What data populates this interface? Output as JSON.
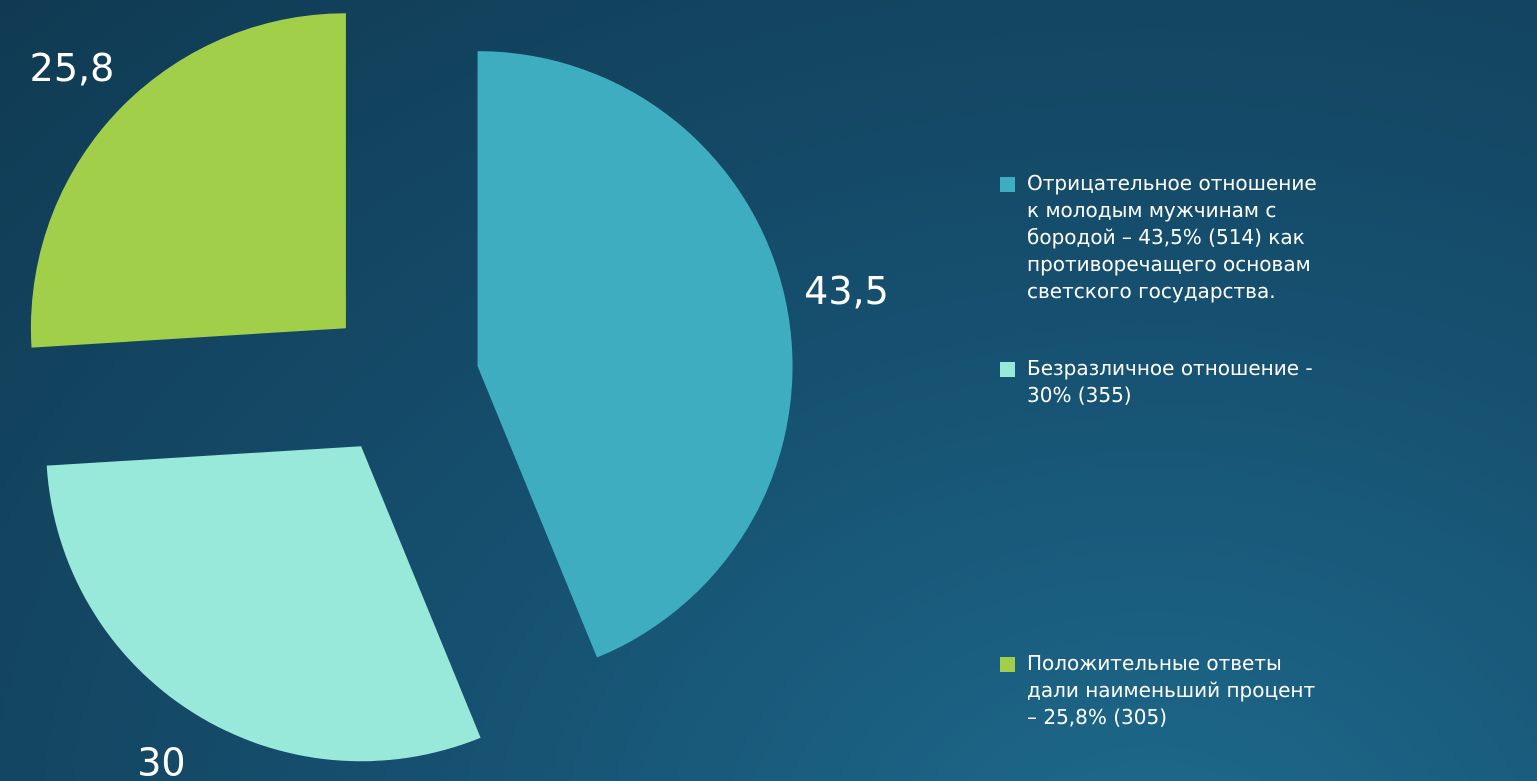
{
  "chart_data": {
    "type": "pie",
    "categories": [
      "Отрицательное отношение к молодым мужчинам с бородой – 43,5% (514) как противоречащего основам светского государства.",
      "Безразличное отношение - 30% (355)",
      "Положительные ответы  дали наименьший процент – 25,8% (305)"
    ],
    "values": [
      43.5,
      30,
      25.8
    ],
    "value_labels": [
      "43,5",
      "30",
      "25,8"
    ],
    "colors": [
      "#3eadbf",
      "#98e9d9",
      "#a2cf4a"
    ],
    "exploded": true,
    "legend": "right"
  }
}
